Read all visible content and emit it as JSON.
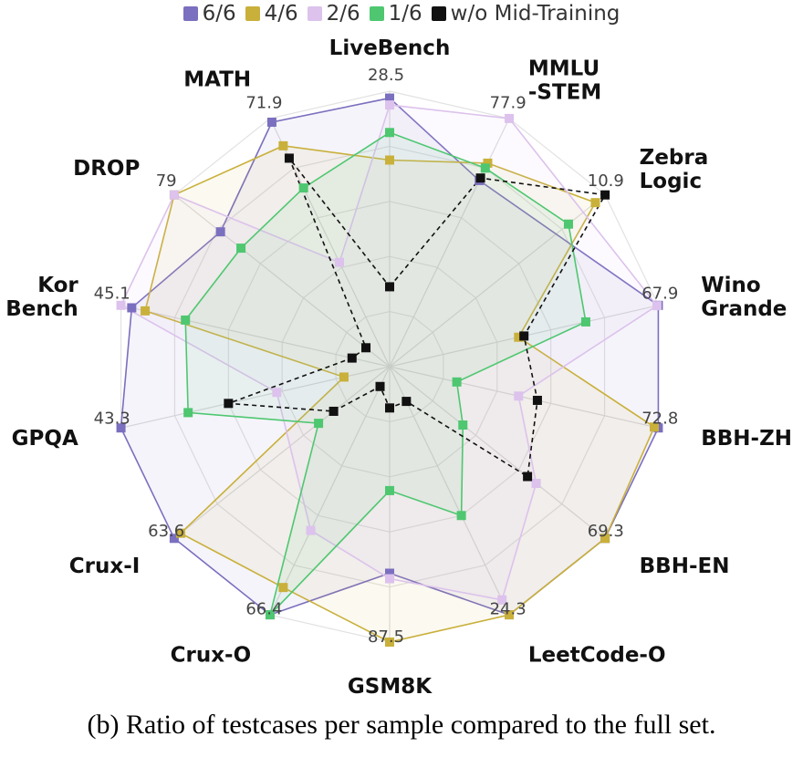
{
  "chart_data": {
    "type": "radar",
    "axes": [
      "LiveBench",
      "MMLU\n-STEM",
      "Zebra\nLogic",
      "Wino\nGrande",
      "BBH-ZH",
      "BBH-EN",
      "LeetCode-O",
      "GSM8K",
      "Crux-O",
      "Crux-I",
      "GPQA",
      "Kor\nBench",
      "DROP",
      "MATH"
    ],
    "max_labels": [
      "28.5",
      "77.9",
      "10.9",
      "67.9",
      "72.8",
      "69.3",
      "24.3",
      "87.5",
      "66.4",
      "63.6",
      "43.3",
      "45.1",
      "79",
      "71.9"
    ],
    "series": [
      {
        "name": "6/6",
        "color": "#7b6fbf",
        "values": [
          0.975,
          0.75,
          null,
          1.0,
          1.0,
          1.0,
          1.0,
          0.75,
          1.0,
          1.0,
          1.0,
          0.96,
          0.785,
          0.985
        ]
      },
      {
        "name": "4/6",
        "color": "#c9b03a",
        "values": [
          0.75,
          0.82,
          0.955,
          0.48,
          0.985,
          1.0,
          1.0,
          1.0,
          0.89,
          0.97,
          0.17,
          0.91,
          1.0,
          0.89
        ]
      },
      {
        "name": "2/6",
        "color": "#dcc2ec",
        "values": [
          0.95,
          1.0,
          null,
          0.995,
          0.48,
          0.68,
          0.94,
          0.77,
          0.66,
          null,
          0.42,
          1.0,
          1.0,
          0.42
        ]
      },
      {
        "name": "1/6",
        "color": "#4ec770",
        "values": [
          0.85,
          0.8,
          0.83,
          0.73,
          0.25,
          0.34,
          0.6,
          0.45,
          1.0,
          0.33,
          0.75,
          0.76,
          0.69,
          0.72
        ]
      },
      {
        "name": "w/o Mid-Training",
        "color": "#111111",
        "dashed": true,
        "values": [
          0.29,
          0.76,
          1.0,
          0.5,
          0.55,
          0.64,
          0.14,
          0.15,
          0.08,
          0.26,
          0.6,
          0.14,
          0.11,
          0.84
        ]
      }
    ],
    "grid_levels": 5,
    "legend_position": "top"
  },
  "caption": "(b) Ratio of testcases per sample compared to the full set."
}
